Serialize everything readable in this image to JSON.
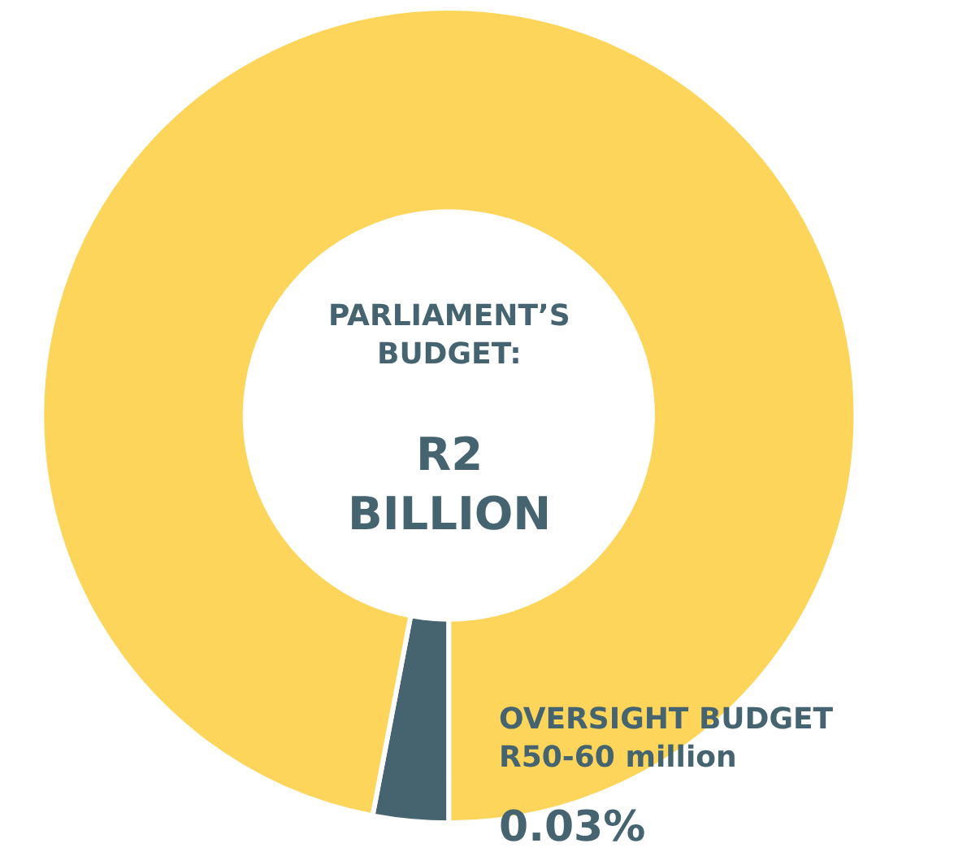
{
  "chart_data": {
    "type": "donut",
    "categories": [
      null,
      null
    ],
    "values": [
      3,
      97
    ],
    "colors": [
      "#456470",
      "#fcd55a"
    ],
    "annotations": [
      "PARLIAMENT’S\nBUDGET:",
      "R2\nBILLION",
      "OVERSIGHT BUDGET\nR50-60 million",
      "0.03%"
    ]
  }
}
